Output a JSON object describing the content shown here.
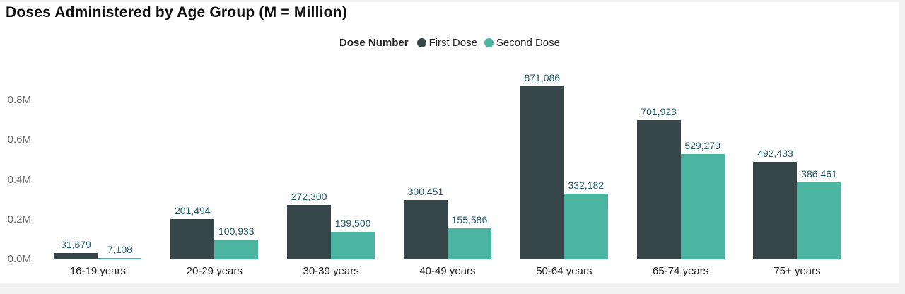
{
  "title": "Doses Administered by Age Group (M = Million)",
  "legend": {
    "title": "Dose Number"
  },
  "chart_data": {
    "type": "bar",
    "title": "Doses Administered by Age Group (M = Million)",
    "categories": [
      "16-19 years",
      "20-29 years",
      "30-39 years",
      "40-49 years",
      "50-64 years",
      "65-74 years",
      "75+ years"
    ],
    "series": [
      {
        "name": "First Dose",
        "color": "#374649",
        "values": [
          31679,
          201494,
          272300,
          300451,
          871086,
          701923,
          492433
        ]
      },
      {
        "name": "Second Dose",
        "color": "#4CB5A2",
        "values": [
          7108,
          100933,
          139500,
          155586,
          332182,
          529279,
          386461
        ]
      }
    ],
    "xlabel": "",
    "ylabel": "",
    "ylim": [
      0,
      1000000
    ],
    "yticks": [
      {
        "value": 0,
        "label": "0.0M"
      },
      {
        "value": 200000,
        "label": "0.2M"
      },
      {
        "value": 400000,
        "label": "0.4M"
      },
      {
        "value": 600000,
        "label": "0.6M"
      },
      {
        "value": 800000,
        "label": "0.8M"
      }
    ],
    "grid": false,
    "legend_position": "top",
    "value_label_color": "#215968"
  }
}
